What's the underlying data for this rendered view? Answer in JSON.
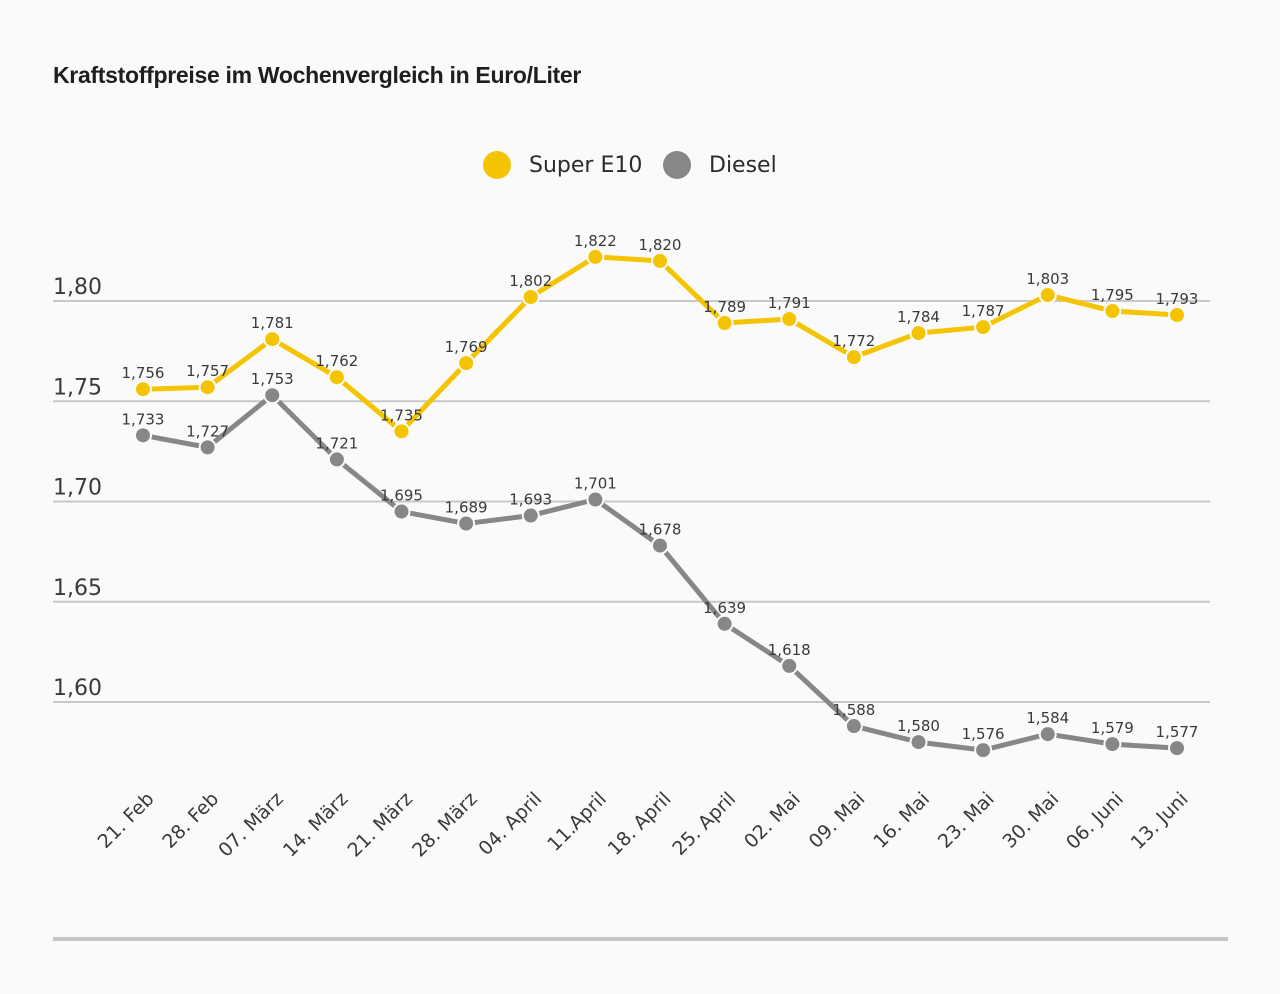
{
  "chart_data": {
    "type": "line",
    "title": "Kraftstoffpreise im Wochenvergleich in Euro/Liter",
    "xlabel": "",
    "ylabel": "",
    "categories": [
      "21. Feb",
      "28. Feb",
      "07. März",
      "14. März",
      "21. März",
      "28. März",
      "04. April",
      "11.April",
      "18. April",
      "25. April",
      "02. Mai",
      "09. Mai",
      "16. Mai",
      "23. Mai",
      "30. Mai",
      "06. Juni",
      "13. Juni"
    ],
    "series": [
      {
        "name": "Super E10",
        "color": "#f5c400",
        "values": [
          1.756,
          1.757,
          1.781,
          1.762,
          1.735,
          1.769,
          1.802,
          1.822,
          1.82,
          1.789,
          1.791,
          1.772,
          1.784,
          1.787,
          1.803,
          1.795,
          1.793
        ],
        "labels": [
          "1,756",
          "1,757",
          "1,781",
          "1,762",
          "1,735",
          "1,769",
          "1,802",
          "1,822",
          "1,820",
          "1,789",
          "1,791",
          "1,772",
          "1,784",
          "1,787",
          "1,803",
          "1,795",
          "1,793"
        ]
      },
      {
        "name": "Diesel",
        "color": "#878787",
        "values": [
          1.733,
          1.727,
          1.753,
          1.721,
          1.695,
          1.689,
          1.693,
          1.701,
          1.678,
          1.639,
          1.618,
          1.588,
          1.58,
          1.576,
          1.584,
          1.579,
          1.577
        ],
        "labels": [
          "1,733",
          "1,727",
          "1,753",
          "1,721",
          "1,695",
          "1,689",
          "1,693",
          "1,701",
          "1,678",
          "1,639",
          "1,618",
          "1,588",
          "1,580",
          "1,576",
          "1,584",
          "1,579",
          "1,577"
        ]
      }
    ],
    "yticks": [
      1.8,
      1.75,
      1.7,
      1.65,
      1.6
    ],
    "ytick_labels": [
      "1,80",
      "1,75",
      "1,70",
      "1,65",
      "1,60"
    ],
    "ylim": [
      1.6,
      1.8
    ],
    "grid": true,
    "legend_position": "top-center"
  },
  "legend": [
    {
      "label": "Super E10",
      "color": "#f5c400"
    },
    {
      "label": "Diesel",
      "color": "#878787"
    }
  ]
}
